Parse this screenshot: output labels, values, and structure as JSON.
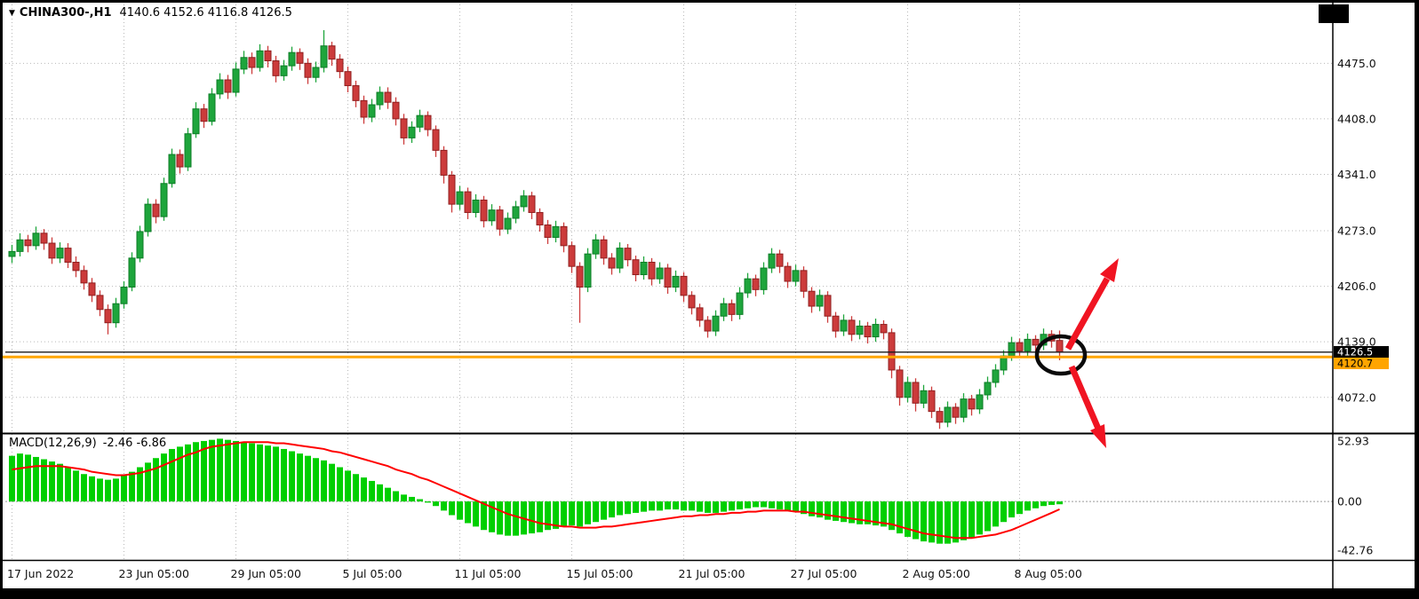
{
  "header": {
    "dropdown_icon": "▼",
    "symbol_period": "CHINA300-,H1",
    "ohlc_text": "4140.6 4152.6 4116.8 4126.5"
  },
  "macd_header": {
    "label": "MACD(12,26,9)",
    "values_text": "-2.46 -6.86"
  },
  "price_axis": {
    "current_tag": "4126.5",
    "line_tag": "4120.7"
  },
  "chart_data": {
    "type": "candlestick",
    "symbol": "CHINA300-",
    "period": "H1",
    "last_ohlc": {
      "open": 4140.6,
      "high": 4152.6,
      "low": 4116.8,
      "close": 4126.5
    },
    "price_range": [
      4030,
      4546
    ],
    "price_ticks": [
      {
        "label": "4475.0",
        "v": 4475
      },
      {
        "label": "4408.0",
        "v": 4408
      },
      {
        "label": "4341.0",
        "v": 4341
      },
      {
        "label": "4273.0",
        "v": 4273
      },
      {
        "label": "4206.0",
        "v": 4206
      },
      {
        "label": "4139.0",
        "v": 4139
      },
      {
        "label": "4072.0",
        "v": 4072
      }
    ],
    "time_ticks": [
      {
        "label": "17 Jun 2022",
        "i": 0
      },
      {
        "label": "23 Jun 05:00",
        "i": 14
      },
      {
        "label": "29 Jun 05:00",
        "i": 28
      },
      {
        "label": "5 Jul 05:00",
        "i": 42
      },
      {
        "label": "11 Jul 05:00",
        "i": 56
      },
      {
        "label": "15 Jul 05:00",
        "i": 70
      },
      {
        "label": "21 Jul 05:00",
        "i": 84
      },
      {
        "label": "27 Jul 05:00",
        "i": 98
      },
      {
        "label": "2 Aug 05:00",
        "i": 112
      },
      {
        "label": "8 Aug 05:00",
        "i": 126
      }
    ],
    "current_price_line": 4126.5,
    "horizontal_line": 4120.7,
    "candles": [
      [
        4242,
        4256,
        4234,
        4248
      ],
      [
        4248,
        4270,
        4242,
        4262
      ],
      [
        4262,
        4268,
        4247,
        4255
      ],
      [
        4255,
        4278,
        4250,
        4270
      ],
      [
        4270,
        4275,
        4250,
        4258
      ],
      [
        4258,
        4265,
        4233,
        4240
      ],
      [
        4240,
        4259,
        4234,
        4252
      ],
      [
        4252,
        4258,
        4228,
        4235
      ],
      [
        4235,
        4242,
        4217,
        4225
      ],
      [
        4225,
        4231,
        4202,
        4210
      ],
      [
        4210,
        4216,
        4187,
        4195
      ],
      [
        4195,
        4201,
        4170,
        4178
      ],
      [
        4178,
        4184,
        4148,
        4162
      ],
      [
        4162,
        4192,
        4156,
        4185
      ],
      [
        4185,
        4212,
        4179,
        4205
      ],
      [
        4205,
        4247,
        4200,
        4240
      ],
      [
        4240,
        4279,
        4235,
        4272
      ],
      [
        4272,
        4312,
        4266,
        4305
      ],
      [
        4305,
        4311,
        4282,
        4290
      ],
      [
        4290,
        4337,
        4285,
        4330
      ],
      [
        4330,
        4372,
        4325,
        4365
      ],
      [
        4365,
        4371,
        4342,
        4350
      ],
      [
        4350,
        4397,
        4345,
        4390
      ],
      [
        4390,
        4428,
        4385,
        4420
      ],
      [
        4420,
        4426,
        4397,
        4405
      ],
      [
        4405,
        4445,
        4400,
        4438
      ],
      [
        4438,
        4463,
        4432,
        4455
      ],
      [
        4455,
        4461,
        4432,
        4440
      ],
      [
        4440,
        4476,
        4435,
        4468
      ],
      [
        4468,
        4490,
        4462,
        4482
      ],
      [
        4482,
        4488,
        4462,
        4470
      ],
      [
        4470,
        4498,
        4465,
        4490
      ],
      [
        4490,
        4496,
        4470,
        4478
      ],
      [
        4478,
        4484,
        4452,
        4460
      ],
      [
        4460,
        4479,
        4454,
        4472
      ],
      [
        4472,
        4495,
        4466,
        4488
      ],
      [
        4488,
        4493,
        4467,
        4475
      ],
      [
        4475,
        4481,
        4450,
        4458
      ],
      [
        4458,
        4477,
        4452,
        4470
      ],
      [
        4470,
        4515,
        4464,
        4496
      ],
      [
        4496,
        4501,
        4472,
        4480
      ],
      [
        4480,
        4486,
        4457,
        4465
      ],
      [
        4465,
        4471,
        4440,
        4448
      ],
      [
        4448,
        4454,
        4422,
        4430
      ],
      [
        4430,
        4436,
        4402,
        4410
      ],
      [
        4410,
        4432,
        4404,
        4425
      ],
      [
        4425,
        4447,
        4419,
        4440
      ],
      [
        4440,
        4446,
        4420,
        4428
      ],
      [
        4428,
        4434,
        4400,
        4408
      ],
      [
        4408,
        4414,
        4377,
        4385
      ],
      [
        4385,
        4405,
        4379,
        4398
      ],
      [
        4398,
        4419,
        4392,
        4412
      ],
      [
        4412,
        4417,
        4387,
        4395
      ],
      [
        4395,
        4400,
        4362,
        4370
      ],
      [
        4370,
        4375,
        4330,
        4340
      ],
      [
        4340,
        4345,
        4295,
        4305
      ],
      [
        4305,
        4327,
        4298,
        4320
      ],
      [
        4320,
        4325,
        4287,
        4295
      ],
      [
        4295,
        4317,
        4289,
        4310
      ],
      [
        4310,
        4315,
        4277,
        4285
      ],
      [
        4285,
        4305,
        4279,
        4298
      ],
      [
        4298,
        4303,
        4267,
        4275
      ],
      [
        4275,
        4295,
        4269,
        4288
      ],
      [
        4288,
        4309,
        4282,
        4302
      ],
      [
        4302,
        4322,
        4296,
        4315
      ],
      [
        4315,
        4320,
        4287,
        4295
      ],
      [
        4295,
        4300,
        4272,
        4280
      ],
      [
        4280,
        4286,
        4257,
        4265
      ],
      [
        4265,
        4285,
        4259,
        4278
      ],
      [
        4278,
        4283,
        4247,
        4255
      ],
      [
        4255,
        4260,
        4222,
        4230
      ],
      [
        4230,
        4235,
        4162,
        4205
      ],
      [
        4205,
        4252,
        4199,
        4245
      ],
      [
        4245,
        4269,
        4239,
        4262
      ],
      [
        4262,
        4267,
        4232,
        4240
      ],
      [
        4240,
        4246,
        4220,
        4228
      ],
      [
        4228,
        4259,
        4222,
        4252
      ],
      [
        4252,
        4257,
        4230,
        4238
      ],
      [
        4238,
        4243,
        4212,
        4220
      ],
      [
        4220,
        4242,
        4214,
        4235
      ],
      [
        4235,
        4240,
        4207,
        4215
      ],
      [
        4215,
        4235,
        4209,
        4228
      ],
      [
        4228,
        4233,
        4197,
        4205
      ],
      [
        4205,
        4225,
        4199,
        4218
      ],
      [
        4218,
        4223,
        4187,
        4195
      ],
      [
        4195,
        4200,
        4172,
        4180
      ],
      [
        4180,
        4185,
        4157,
        4165
      ],
      [
        4165,
        4170,
        4144,
        4152
      ],
      [
        4152,
        4177,
        4146,
        4170
      ],
      [
        4170,
        4192,
        4164,
        4185
      ],
      [
        4185,
        4190,
        4164,
        4172
      ],
      [
        4172,
        4205,
        4166,
        4198
      ],
      [
        4198,
        4222,
        4192,
        4215
      ],
      [
        4215,
        4220,
        4194,
        4202
      ],
      [
        4202,
        4235,
        4196,
        4228
      ],
      [
        4228,
        4252,
        4222,
        4245
      ],
      [
        4245,
        4250,
        4222,
        4230
      ],
      [
        4230,
        4235,
        4204,
        4212
      ],
      [
        4212,
        4232,
        4206,
        4225
      ],
      [
        4225,
        4230,
        4192,
        4200
      ],
      [
        4200,
        4205,
        4174,
        4182
      ],
      [
        4182,
        4202,
        4176,
        4195
      ],
      [
        4195,
        4200,
        4162,
        4170
      ],
      [
        4170,
        4175,
        4144,
        4152
      ],
      [
        4152,
        4172,
        4146,
        4165
      ],
      [
        4165,
        4170,
        4140,
        4148
      ],
      [
        4148,
        4165,
        4142,
        4158
      ],
      [
        4158,
        4163,
        4137,
        4145
      ],
      [
        4145,
        4167,
        4139,
        4160
      ],
      [
        4160,
        4165,
        4142,
        4150
      ],
      [
        4150,
        4155,
        4095,
        4105
      ],
      [
        4105,
        4110,
        4062,
        4072
      ],
      [
        4072,
        4097,
        4066,
        4090
      ],
      [
        4090,
        4095,
        4055,
        4065
      ],
      [
        4065,
        4087,
        4059,
        4080
      ],
      [
        4080,
        4085,
        4047,
        4055
      ],
      [
        4055,
        4060,
        4034,
        4042
      ],
      [
        4042,
        4067,
        4036,
        4060
      ],
      [
        4060,
        4065,
        4040,
        4048
      ],
      [
        4048,
        4077,
        4042,
        4070
      ],
      [
        4070,
        4075,
        4050,
        4058
      ],
      [
        4058,
        4082,
        4052,
        4075
      ],
      [
        4075,
        4097,
        4069,
        4090
      ],
      [
        4090,
        4112,
        4084,
        4105
      ],
      [
        4105,
        4129,
        4099,
        4122
      ],
      [
        4122,
        4145,
        4116,
        4138
      ],
      [
        4138,
        4143,
        4120,
        4128
      ],
      [
        4128,
        4149,
        4122,
        4142
      ],
      [
        4142,
        4147,
        4127,
        4135
      ],
      [
        4135,
        4155,
        4129,
        4148
      ],
      [
        4148,
        4153,
        4132,
        4140
      ],
      [
        4140.6,
        4152.6,
        4116.8,
        4126.5
      ]
    ],
    "macd": {
      "settings": "12,26,9",
      "value": -2.46,
      "signal_value": -6.86,
      "ticks": [
        {
          "label": "52.93",
          "v": 52.93
        },
        {
          "label": "0.00",
          "v": 0
        },
        {
          "label": "-42.76",
          "v": -42.76
        }
      ],
      "range": [
        -50.5,
        58.4
      ],
      "histogram": [
        40,
        42,
        41,
        39,
        37,
        35,
        33,
        30,
        27,
        24,
        22,
        20,
        19,
        20,
        23,
        26,
        30,
        34,
        38,
        42,
        46,
        48,
        50,
        52,
        53,
        54,
        55,
        54,
        53,
        52,
        51,
        50,
        49,
        48,
        46,
        44,
        42,
        40,
        38,
        36,
        33,
        30,
        27,
        24,
        21,
        18,
        15,
        12,
        9,
        6,
        4,
        2,
        -1,
        -4,
        -8,
        -12,
        -16,
        -19,
        -22,
        -25,
        -27,
        -29,
        -30,
        -30,
        -29,
        -28,
        -27,
        -25,
        -24,
        -22,
        -21,
        -22,
        -20,
        -18,
        -16,
        -14,
        -12,
        -11,
        -10,
        -9,
        -8,
        -8,
        -7,
        -7,
        -8,
        -8,
        -9,
        -10,
        -10,
        -9,
        -8,
        -7,
        -6,
        -5,
        -5,
        -6,
        -7,
        -8,
        -9,
        -11,
        -13,
        -14,
        -16,
        -17,
        -18,
        -19,
        -20,
        -20,
        -21,
        -22,
        -25,
        -28,
        -31,
        -33,
        -35,
        -36,
        -37,
        -37,
        -36,
        -34,
        -32,
        -29,
        -26,
        -22,
        -18,
        -14,
        -11,
        -8,
        -6,
        -4,
        -3,
        -2.46
      ],
      "signal": [
        28,
        29,
        30,
        31,
        31,
        31,
        31,
        30,
        29,
        28,
        26,
        25,
        24,
        23,
        23,
        24,
        25,
        27,
        29,
        32,
        35,
        38,
        41,
        43,
        46,
        48,
        49,
        50,
        51,
        52,
        52,
        52,
        52,
        51,
        51,
        50,
        49,
        48,
        47,
        46,
        44,
        43,
        41,
        39,
        37,
        35,
        33,
        31,
        28,
        26,
        24,
        21,
        19,
        16,
        13,
        10,
        7,
        4,
        1,
        -2,
        -5,
        -8,
        -11,
        -13,
        -15,
        -17,
        -19,
        -20,
        -21,
        -22,
        -22,
        -23,
        -23,
        -23,
        -22,
        -22,
        -21,
        -20,
        -19,
        -18,
        -17,
        -16,
        -15,
        -14,
        -13,
        -13,
        -12,
        -12,
        -11,
        -11,
        -10,
        -10,
        -9,
        -9,
        -8,
        -8,
        -8,
        -8,
        -9,
        -9,
        -10,
        -11,
        -12,
        -13,
        -14,
        -15,
        -16,
        -17,
        -18,
        -19,
        -20,
        -22,
        -24,
        -26,
        -28,
        -29,
        -30,
        -31,
        -32,
        -32,
        -32,
        -31,
        -30,
        -29,
        -27,
        -25,
        -22,
        -19,
        -16,
        -13,
        -10,
        -6.86
      ]
    },
    "colors": {
      "up": "#1EA53C",
      "up_stroke": "#0c7d26",
      "down": "#CC3B3B",
      "down_stroke": "#8f1f1f",
      "histogram": "#00CF00",
      "signal_line": "#FF0000",
      "grid": "#b9b9b9",
      "zero_line": "#9a9a9a",
      "orange_line": "#FFA500",
      "price_line": "#1a1a1a",
      "annotation_arrow": "#F01422",
      "annotation_circle": "#0a0a0a",
      "tag_current_bg": "#000000",
      "tag_line_bg": "#FFA500"
    }
  }
}
